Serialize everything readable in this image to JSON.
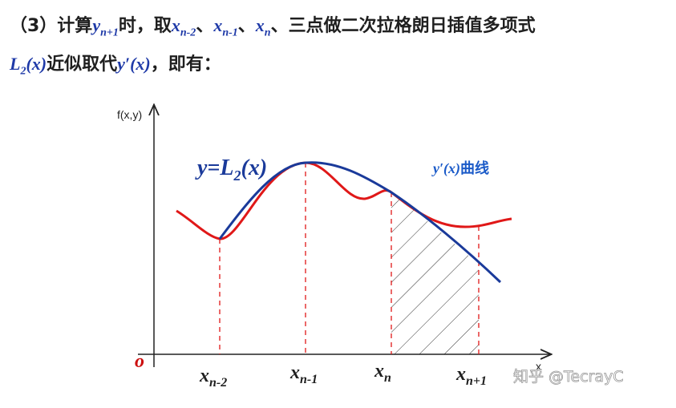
{
  "header": {
    "prefix": "（3）计算",
    "y_var": "y",
    "y_sub": "n+1",
    "mid1": "时，取",
    "x1": "x",
    "x1_sub": "n-2",
    "sep1": "、",
    "x2": "x",
    "x2_sub": "n-1",
    "sep2": "、",
    "x3": "x",
    "x3_sub": "n",
    "tail1": "、三点做二次拉格朗日插值多项式",
    "L": "L",
    "L_sub": "2",
    "L_arg": "(x)",
    "line2_mid": "近似取代",
    "yprime": "y′(x)",
    "line2_end": "，即有："
  },
  "diagram": {
    "y_axis_label": "f(x,y)",
    "x_axis_label": "x",
    "origin_label": "o",
    "curve_label_L2_pre": "y=L",
    "curve_label_L2_sub": "2",
    "curve_label_L2_post": "(x)",
    "curve_label_yprime_pre": "y′(x)",
    "curve_label_yprime_post": "曲线",
    "ticks": [
      {
        "base": "x",
        "sub": "n-2"
      },
      {
        "base": "x",
        "sub": "n-1"
      },
      {
        "base": "x",
        "sub": "n"
      },
      {
        "base": "x",
        "sub": "n+1"
      }
    ],
    "colors": {
      "red_curve": "#e01818",
      "blue_curve": "#1a3a9a",
      "axis": "#222222",
      "hatch": "#333333"
    }
  },
  "watermark": "知乎 @TecrayC"
}
